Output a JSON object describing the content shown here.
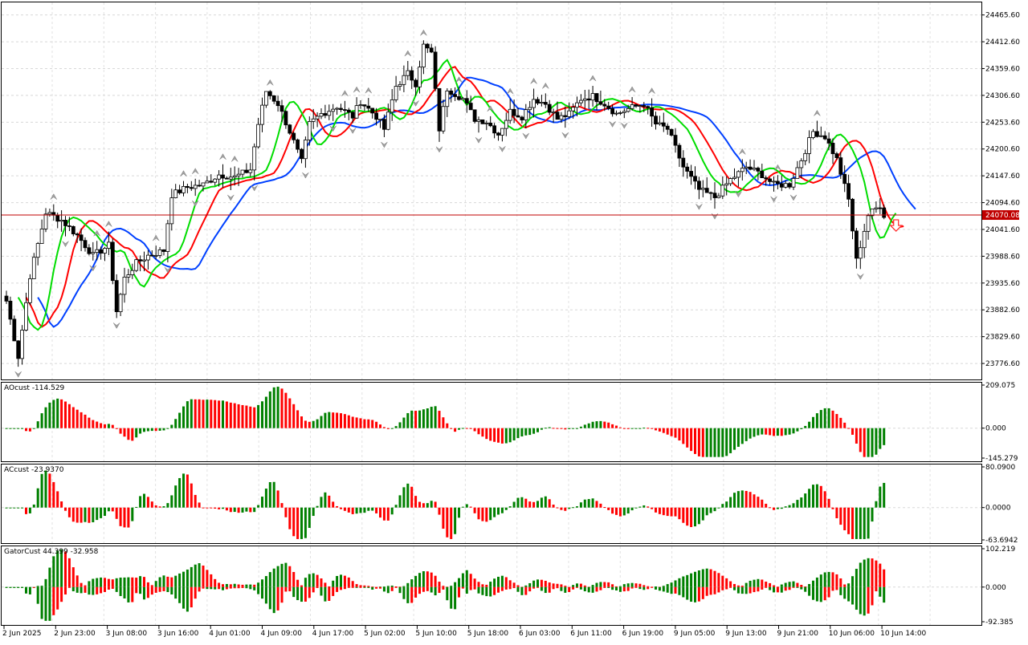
{
  "chart_data": [
    {
      "id": "price",
      "type": "candlestick",
      "ylim": [
        23745,
        24492
      ],
      "y_ticks": [
        "24465.60",
        "24412.60",
        "24359.60",
        "24306.60",
        "24253.60",
        "24200.60",
        "24147.60",
        "24094.60",
        "24041.60",
        "23988.60",
        "23935.60",
        "23882.60",
        "23829.60",
        "23776.60"
      ],
      "current_price": {
        "value": 24070.08,
        "label": "24070.08",
        "color": "#c00000"
      },
      "last_signal": {
        "type": "sell-arrow",
        "color": "#ff3030"
      },
      "series": [
        {
          "name": "",
          "color": "#0040ff"
        },
        {
          "name": "",
          "color": "#ff0000"
        },
        {
          "name": "",
          "color": "#00dd00"
        }
      ],
      "candle_colors": {
        "up": "#ffffff",
        "down": "#000000",
        "outline": "#000000"
      },
      "grid": true
    },
    {
      "id": "ao",
      "type": "bar",
      "title": "AOcust -114.529",
      "y_ticks": [
        "209.075",
        "0.000",
        "-145.279"
      ],
      "ylim": [
        -145.279,
        209.075
      ],
      "colors": {
        "up": "#008000",
        "down": "#ff0000"
      },
      "grid": true
    },
    {
      "id": "ac",
      "type": "bar",
      "title": "ACcust -23.9370",
      "y_ticks": [
        "80.0900",
        "0.0000",
        "-63.6942"
      ],
      "ylim": [
        -63.6942,
        80.09
      ],
      "colors": {
        "up": "#008000",
        "down": "#ff0000"
      },
      "grid": true
    },
    {
      "id": "gator",
      "type": "bar",
      "title": "GatorCust 44.399 -32.958",
      "y_ticks": [
        "102.219",
        "0.000",
        "-92.385"
      ],
      "ylim": [
        -92.385,
        102.219
      ],
      "colors": {
        "up": "#008000",
        "down": "#ff0000"
      },
      "grid": true
    }
  ],
  "x_labels": [
    "2 Jun 2025",
    "2 Jun 23:00",
    "3 Jun 08:00",
    "3 Jun 16:00",
    "4 Jun 01:00",
    "4 Jun 09:00",
    "4 Jun 17:00",
    "5 Jun 02:00",
    "5 Jun 10:00",
    "5 Jun 18:00",
    "6 Jun 03:00",
    "6 Jun 11:00",
    "6 Jun 19:00",
    "9 Jun 05:00",
    "9 Jun 13:00",
    "9 Jun 21:00",
    "10 Jun 06:00",
    "10 Jun 14:00"
  ],
  "panel_titles": {
    "ao": "AOcust -114.529",
    "ac": "ACcust -23.9370",
    "gator": "GatorCust 44.399 -32.958"
  }
}
